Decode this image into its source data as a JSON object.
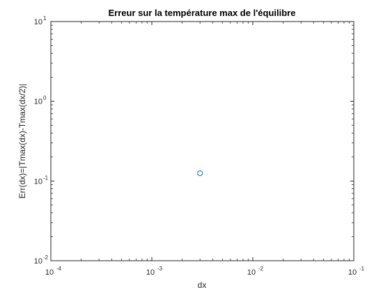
{
  "chart_data": {
    "type": "scatter",
    "title": "Erreur sur la température max de l'équilibre",
    "xlabel": "dx",
    "ylabel": "Err(dx)=|Tmax(dx)-Tmax(dx/2)|",
    "xscale": "log",
    "yscale": "log",
    "xlim": [
      0.0001,
      0.1
    ],
    "ylim": [
      0.01,
      10
    ],
    "x_ticks": [
      {
        "base": "10",
        "exp": "-4",
        "value": 0.0001
      },
      {
        "base": "10",
        "exp": "-3",
        "value": 0.001
      },
      {
        "base": "10",
        "exp": "-2",
        "value": 0.01
      },
      {
        "base": "10",
        "exp": "-1",
        "value": 0.1
      }
    ],
    "y_ticks": [
      {
        "base": "10",
        "exp": "-2",
        "value": 0.01
      },
      {
        "base": "10",
        "exp": "-1",
        "value": 0.1
      },
      {
        "base": "10",
        "exp": "0",
        "value": 1
      },
      {
        "base": "10",
        "exp": "1",
        "value": 10
      }
    ],
    "grid": false,
    "marker": "circle-open",
    "series": [
      {
        "color": "#0072BD",
        "points": [
          {
            "x": 0.003,
            "y": 0.125
          }
        ]
      }
    ]
  }
}
